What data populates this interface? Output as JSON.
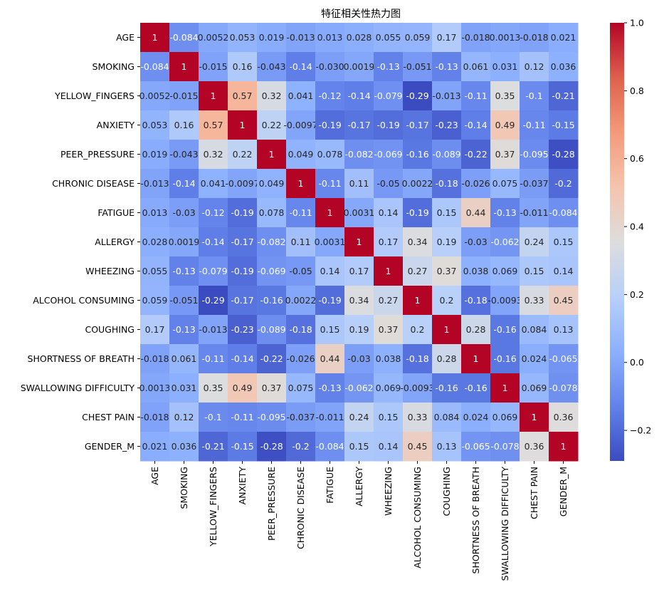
{
  "chart_data": {
    "type": "heatmap",
    "title": "特征相关性热力图",
    "xlabel": "",
    "ylabel": "",
    "colormap": "coolwarm",
    "vmin": -0.29,
    "vmax": 1.0,
    "colorbar_ticks": [
      -0.2,
      0.0,
      0.2,
      0.4,
      0.6,
      0.8,
      1.0
    ],
    "colorbar_tick_labels": [
      "−0.2",
      "0.0",
      "0.2",
      "0.4",
      "0.6",
      "0.8",
      "1.0"
    ],
    "labels": [
      "AGE",
      "SMOKING",
      "YELLOW_FINGERS",
      "ANXIETY",
      "PEER_PRESSURE",
      "CHRONIC DISEASE",
      "FATIGUE ",
      "ALLERGY ",
      "WHEEZING",
      "ALCOHOL CONSUMING",
      "COUGHING",
      "SHORTNESS OF BREATH",
      "SWALLOWING DIFFICULTY",
      "CHEST PAIN",
      "GENDER_M"
    ],
    "values": [
      [
        1,
        -0.084,
        0.0052,
        0.053,
        0.019,
        -0.013,
        0.013,
        0.028,
        0.055,
        0.059,
        0.17,
        -0.018,
        0.0013,
        -0.018,
        0.021
      ],
      [
        -0.084,
        1,
        -0.015,
        0.16,
        -0.043,
        -0.14,
        -0.03,
        0.0019,
        -0.13,
        -0.051,
        -0.13,
        0.061,
        0.031,
        0.12,
        0.036
      ],
      [
        0.0052,
        -0.015,
        1,
        0.57,
        0.32,
        0.041,
        -0.12,
        -0.14,
        -0.079,
        -0.29,
        -0.013,
        -0.11,
        0.35,
        -0.1,
        -0.21
      ],
      [
        0.053,
        0.16,
        0.57,
        1,
        0.22,
        -0.0097,
        -0.19,
        -0.17,
        -0.19,
        -0.17,
        -0.23,
        -0.14,
        0.49,
        -0.11,
        -0.15
      ],
      [
        0.019,
        -0.043,
        0.32,
        0.22,
        1,
        0.049,
        0.078,
        -0.082,
        -0.069,
        -0.16,
        -0.089,
        -0.22,
        0.37,
        -0.095,
        -0.28
      ],
      [
        -0.013,
        -0.14,
        0.041,
        -0.0097,
        0.049,
        1,
        -0.11,
        0.11,
        -0.05,
        0.0022,
        -0.18,
        -0.026,
        0.075,
        -0.037,
        -0.2
      ],
      [
        0.013,
        -0.03,
        -0.12,
        -0.19,
        0.078,
        -0.11,
        1,
        0.0031,
        0.14,
        -0.19,
        0.15,
        0.44,
        -0.13,
        -0.011,
        -0.084
      ],
      [
        0.028,
        0.0019,
        -0.14,
        -0.17,
        -0.082,
        0.11,
        0.0031,
        1,
        0.17,
        0.34,
        0.19,
        -0.03,
        -0.062,
        0.24,
        0.15
      ],
      [
        0.055,
        -0.13,
        -0.079,
        -0.19,
        -0.069,
        -0.05,
        0.14,
        0.17,
        1,
        0.27,
        0.37,
        0.038,
        0.069,
        0.15,
        0.14
      ],
      [
        0.059,
        -0.051,
        -0.29,
        -0.17,
        -0.16,
        0.0022,
        -0.19,
        0.34,
        0.27,
        1,
        0.2,
        -0.18,
        -0.0093,
        0.33,
        0.45
      ],
      [
        0.17,
        -0.13,
        -0.013,
        -0.23,
        -0.089,
        -0.18,
        0.15,
        0.19,
        0.37,
        0.2,
        1,
        0.28,
        -0.16,
        0.084,
        0.13
      ],
      [
        -0.018,
        0.061,
        -0.11,
        -0.14,
        -0.22,
        -0.026,
        0.44,
        -0.03,
        0.038,
        -0.18,
        0.28,
        1,
        -0.16,
        0.024,
        -0.065
      ],
      [
        0.0013,
        0.031,
        0.35,
        0.49,
        0.37,
        0.075,
        -0.13,
        -0.062,
        0.069,
        -0.0093,
        -0.16,
        -0.16,
        1,
        0.069,
        -0.078
      ],
      [
        -0.018,
        0.12,
        -0.1,
        -0.11,
        -0.095,
        -0.037,
        -0.011,
        0.24,
        0.15,
        0.33,
        0.084,
        0.024,
        0.069,
        1,
        0.36
      ],
      [
        0.021,
        0.036,
        -0.21,
        -0.15,
        -0.28,
        -0.2,
        -0.084,
        0.15,
        0.14,
        0.45,
        0.13,
        -0.065,
        -0.078,
        0.36,
        1
      ]
    ],
    "annotations": [
      [
        "1",
        "-0.084",
        "0.0052",
        "0.053",
        "0.019",
        "-0.013",
        "0.013",
        "0.028",
        "0.055",
        "0.059",
        "0.17",
        "-0.018",
        "0.0013",
        "-0.018",
        "0.021"
      ],
      [
        "-0.084",
        "1",
        "-0.015",
        "0.16",
        "-0.043",
        "-0.14",
        "-0.030",
        "0.0019",
        "-0.13",
        "-0.051",
        "-0.13",
        "0.061",
        "0.031",
        "0.12",
        "0.036"
      ],
      [
        "0.0052",
        "-0.015",
        "1",
        "0.57",
        "0.32",
        "0.041",
        "-0.12",
        "-0.14",
        "-0.079",
        "-0.29",
        "-0.013",
        "-0.11",
        "0.35",
        "-0.1",
        "-0.21"
      ],
      [
        "0.053",
        "0.16",
        "0.57",
        "1",
        "0.22",
        "-0.0097",
        "-0.19",
        "-0.17",
        "-0.19",
        "-0.17",
        "-0.23",
        "-0.14",
        "0.49",
        "-0.11",
        "-0.15"
      ],
      [
        "0.019",
        "-0.043",
        "0.32",
        "0.22",
        "1",
        "0.049",
        "0.078",
        "-0.082",
        "-0.069",
        "-0.16",
        "-0.089",
        "-0.22",
        "0.37",
        "-0.095",
        "-0.28"
      ],
      [
        "-0.013",
        "-0.14",
        "0.041",
        "-0.0097",
        "0.049",
        "1",
        "-0.11",
        "0.11",
        "-0.05",
        "0.0022",
        "-0.18",
        "-0.026",
        "0.075",
        "-0.037",
        "-0.2"
      ],
      [
        "0.013",
        "-0.03",
        "-0.12",
        "-0.19",
        "0.078",
        "-0.11",
        "1",
        "0.0031",
        "0.14",
        "-0.19",
        "0.15",
        "0.44",
        "-0.13",
        "-0.011",
        "-0.084"
      ],
      [
        "0.028",
        "0.0019",
        "-0.14",
        "-0.17",
        "-0.082",
        "0.11",
        "0.0031",
        "1",
        "0.17",
        "0.34",
        "0.19",
        "-0.03",
        "-0.062",
        "0.24",
        "0.15"
      ],
      [
        "0.055",
        "-0.13",
        "-0.079",
        "-0.19",
        "-0.069",
        "-0.05",
        "0.14",
        "0.17",
        "1",
        "0.27",
        "0.37",
        "0.038",
        "0.069",
        "0.15",
        "0.14"
      ],
      [
        "0.059",
        "-0.051",
        "-0.29",
        "-0.17",
        "-0.16",
        "0.0022",
        "-0.19",
        "0.34",
        "0.27",
        "1",
        "0.2",
        "-0.18",
        "-0.0093",
        "0.33",
        "0.45"
      ],
      [
        "0.17",
        "-0.13",
        "-0.013",
        "-0.23",
        "-0.089",
        "-0.18",
        "0.15",
        "0.19",
        "0.37",
        "0.2",
        "1",
        "0.28",
        "-0.16",
        "0.084",
        "0.13"
      ],
      [
        "-0.018",
        "0.061",
        "-0.11",
        "-0.14",
        "-0.22",
        "-0.026",
        "0.44",
        "-0.03",
        "0.038",
        "-0.18",
        "0.28",
        "1",
        "-0.16",
        "0.024",
        "-0.065"
      ],
      [
        "0.0013",
        "0.031",
        "0.35",
        "0.49",
        "0.37",
        "0.075",
        "-0.13",
        "-0.062",
        "0.069",
        "-0.0093",
        "-0.16",
        "-0.16",
        "1",
        "0.069",
        "-0.078"
      ],
      [
        "-0.018",
        "0.12",
        "-0.1",
        "-0.11",
        "-0.095",
        "-0.037",
        "-0.011",
        "0.24",
        "0.15",
        "0.33",
        "0.084",
        "0.024",
        "0.069",
        "1",
        "0.36"
      ],
      [
        "0.021",
        "0.036",
        "-0.21",
        "-0.15",
        "-0.28",
        "-0.2",
        "-0.084",
        "0.15",
        "0.14",
        "0.45",
        "0.13",
        "-0.065",
        "-0.078",
        "0.36",
        "1"
      ]
    ]
  }
}
